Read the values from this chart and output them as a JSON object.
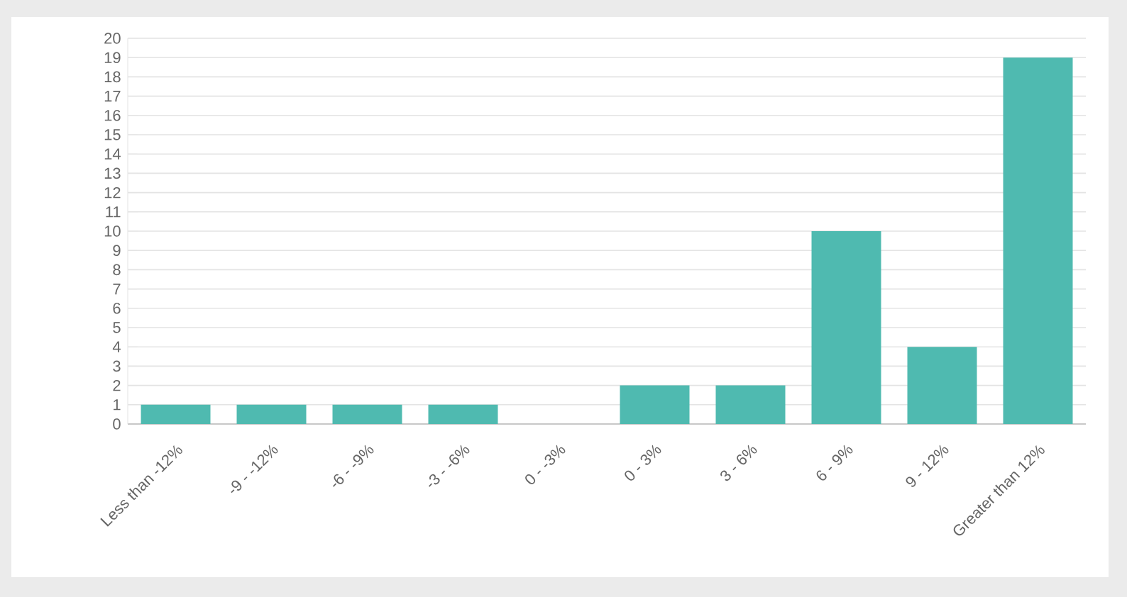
{
  "chart_data": {
    "type": "bar",
    "categories": [
      "Less than -12%",
      "-9 - -12%",
      "-6 - -9%",
      "-3 - -6%",
      "0 - -3%",
      "0 - 3%",
      "3 - 6%",
      "6 - 9%",
      "9 - 12%",
      "Greater than 12%"
    ],
    "values": [
      1,
      1,
      1,
      1,
      0,
      2,
      2,
      10,
      4,
      19
    ],
    "color": "#4fbab0",
    "ylim": [
      0,
      20
    ],
    "yticks": [
      0,
      1,
      2,
      3,
      4,
      5,
      6,
      7,
      8,
      9,
      10,
      11,
      12,
      13,
      14,
      15,
      16,
      17,
      18,
      19,
      20
    ],
    "grid": "y"
  }
}
